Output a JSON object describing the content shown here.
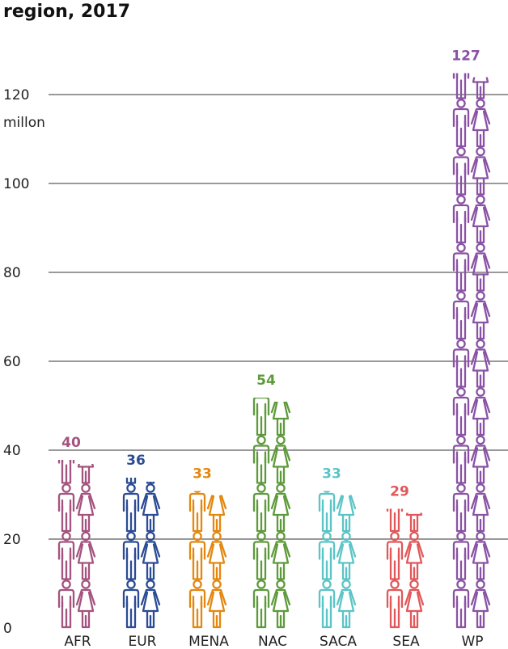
{
  "chart_data": {
    "type": "bar",
    "title": "region, 2017",
    "ylabel": "millon",
    "ylim": [
      0,
      127
    ],
    "yticks": [
      0,
      20,
      40,
      60,
      80,
      100,
      120
    ],
    "grid": true,
    "categories": [
      "AFR",
      "EUR",
      "MENA",
      "NAC",
      "SACA",
      "SEA",
      "WP"
    ],
    "values": [
      40,
      36,
      33,
      54,
      33,
      29,
      127
    ],
    "colors": [
      "#a4537e",
      "#2b4b94",
      "#e3880f",
      "#5e9a3b",
      "#5bc4c6",
      "#e0585a",
      "#8a52a4"
    ],
    "marker": "male and female person pictograms"
  }
}
